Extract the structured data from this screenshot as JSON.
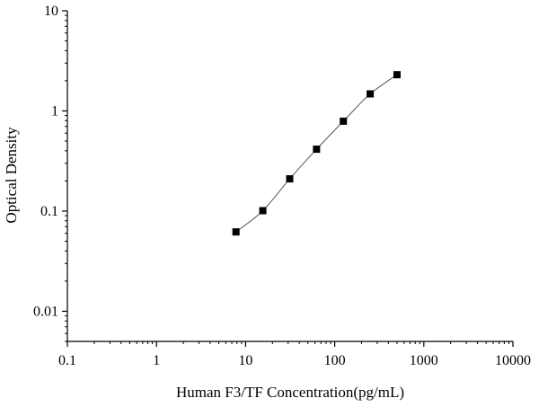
{
  "chart_data": {
    "type": "scatter",
    "title": "",
    "xlabel": "Human F3/TF Concentration(pg/mL)",
    "ylabel": "Optical Density",
    "x_scale": "log",
    "y_scale": "log",
    "xlim": [
      0.1,
      10000
    ],
    "ylim": [
      0.005,
      10
    ],
    "x_ticks": [
      0.1,
      1,
      10,
      100,
      1000,
      10000
    ],
    "x_tick_labels": [
      "0.1",
      "1",
      "10",
      "100",
      "1000",
      "10000"
    ],
    "y_ticks": [
      0.01,
      0.1,
      1,
      10
    ],
    "y_tick_labels": [
      "0.01",
      "0.1",
      "1",
      "10"
    ],
    "grid": false,
    "legend": "none",
    "series": [
      {
        "marker": "square",
        "line": "fitted-curve",
        "x": [
          7.8,
          15.6,
          31.25,
          62.5,
          125,
          250,
          500
        ],
        "y": [
          0.062,
          0.101,
          0.21,
          0.415,
          0.79,
          1.48,
          2.3
        ]
      }
    ],
    "colors": {
      "marker": "#000000",
      "curve": "#555555",
      "axis": "#000000"
    }
  }
}
